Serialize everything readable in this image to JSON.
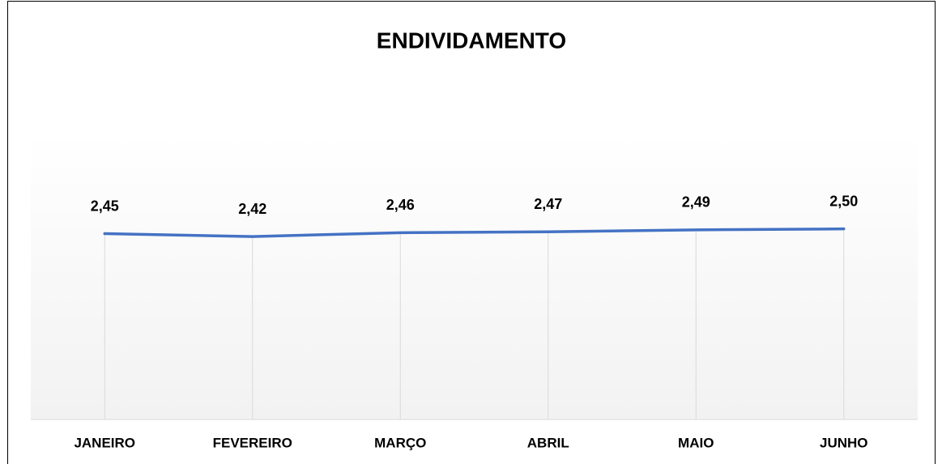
{
  "chart_data": {
    "type": "line",
    "title": "ENDIVIDAMENTO",
    "categories": [
      "JANEIRO",
      "FEVEREIRO",
      "MARÇO",
      "ABRIL",
      "MAIO",
      "JUNHO"
    ],
    "series": [
      {
        "name": "ENDIVIDAMENTO",
        "color": "#4472c4",
        "values": [
          2.45,
          2.42,
          2.46,
          2.47,
          2.49,
          2.5
        ],
        "value_labels": [
          "2,45",
          "2,42",
          "2,46",
          "2,47",
          "2,49",
          "2,50"
        ]
      }
    ],
    "ylim": [
      0.5,
      3.5
    ]
  }
}
